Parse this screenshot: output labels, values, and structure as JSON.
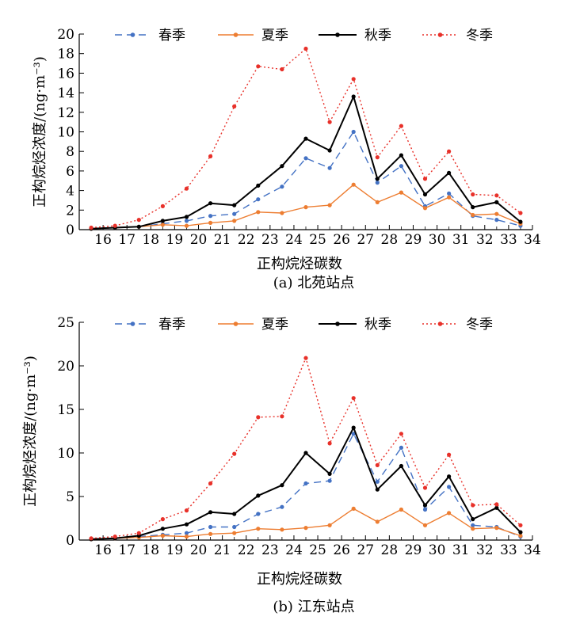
{
  "chart_data": [
    {
      "type": "line",
      "caption": "(a) 北苑站点",
      "xlabel": "正构烷烃碳数",
      "ylabel": "正构烷烃浓度/(ng·m⁻³)",
      "x_ticks": [
        16,
        17,
        18,
        19,
        20,
        21,
        22,
        23,
        24,
        25,
        26,
        27,
        28,
        29,
        30,
        31,
        32,
        33,
        34
      ],
      "y_ticks": [
        0,
        2,
        4,
        6,
        8,
        10,
        12,
        14,
        16,
        18,
        20
      ],
      "xlim": [
        15,
        34
      ],
      "ylim": [
        0,
        20
      ],
      "legend_position": "top",
      "x": [
        15.5,
        16.5,
        17.5,
        18.5,
        19.5,
        20.5,
        21.5,
        22.5,
        23.5,
        24.5,
        25.5,
        26.5,
        27.5,
        28.5,
        29.5,
        30.5,
        31.5,
        32.5,
        33.5
      ],
      "series": [
        {
          "name": "春季",
          "color": "#4472c4",
          "style": "dashed",
          "values": [
            0.1,
            0.2,
            0.3,
            0.6,
            0.9,
            1.4,
            1.6,
            3.1,
            4.4,
            7.3,
            6.3,
            10.0,
            4.8,
            6.5,
            2.4,
            3.7,
            1.4,
            1.0,
            0.4
          ]
        },
        {
          "name": "夏季",
          "color": "#ed7d31",
          "style": "solid",
          "values": [
            0.1,
            0.2,
            0.3,
            0.5,
            0.4,
            0.7,
            0.9,
            1.8,
            1.7,
            2.3,
            2.5,
            4.6,
            2.8,
            3.8,
            2.2,
            3.3,
            1.5,
            1.6,
            0.6
          ]
        },
        {
          "name": "秋季",
          "color": "#000000",
          "style": "solid",
          "values": [
            0.1,
            0.2,
            0.3,
            0.9,
            1.3,
            2.7,
            2.5,
            4.5,
            6.5,
            9.3,
            8.1,
            13.6,
            5.2,
            7.6,
            3.6,
            5.8,
            2.3,
            2.8,
            0.8
          ]
        },
        {
          "name": "冬季",
          "color": "#e8312a",
          "style": "dotted",
          "values": [
            0.2,
            0.4,
            1.0,
            2.4,
            4.2,
            7.5,
            12.6,
            16.7,
            16.4,
            18.5,
            11.0,
            15.4,
            7.4,
            10.6,
            5.2,
            8.0,
            3.6,
            3.5,
            1.7
          ]
        }
      ]
    },
    {
      "type": "line",
      "caption": "(b) 江东站点",
      "xlabel": "正构烷烃碳数",
      "ylabel": "正构烷烃浓度/(ng·m⁻³)",
      "x_ticks": [
        16,
        17,
        18,
        19,
        20,
        21,
        22,
        23,
        24,
        25,
        26,
        27,
        28,
        29,
        30,
        31,
        32,
        33,
        34
      ],
      "y_ticks": [
        0,
        5,
        10,
        15,
        20,
        25
      ],
      "xlim": [
        15,
        34
      ],
      "ylim": [
        0,
        25
      ],
      "legend_position": "top",
      "x": [
        15.5,
        16.5,
        17.5,
        18.5,
        19.5,
        20.5,
        21.5,
        22.5,
        23.5,
        24.5,
        25.5,
        26.5,
        27.5,
        28.5,
        29.5,
        30.5,
        31.5,
        32.5,
        33.5
      ],
      "series": [
        {
          "name": "春季",
          "color": "#4472c4",
          "style": "dashed",
          "values": [
            0.1,
            0.2,
            0.4,
            0.6,
            0.8,
            1.5,
            1.5,
            3.0,
            3.8,
            6.5,
            6.8,
            12.2,
            6.7,
            10.6,
            3.5,
            6.1,
            1.7,
            1.5,
            0.4
          ]
        },
        {
          "name": "夏季",
          "color": "#ed7d31",
          "style": "solid",
          "values": [
            0.1,
            0.2,
            0.3,
            0.5,
            0.4,
            0.7,
            0.8,
            1.3,
            1.2,
            1.4,
            1.7,
            3.6,
            2.1,
            3.5,
            1.7,
            3.1,
            1.3,
            1.4,
            0.5
          ]
        },
        {
          "name": "秋季",
          "color": "#000000",
          "style": "solid",
          "values": [
            0.1,
            0.2,
            0.5,
            1.3,
            1.8,
            3.2,
            3.0,
            5.1,
            6.3,
            10.0,
            7.6,
            12.9,
            5.8,
            8.5,
            4.0,
            7.3,
            2.4,
            3.7,
            0.9
          ]
        },
        {
          "name": "冬季",
          "color": "#e8312a",
          "style": "dotted",
          "values": [
            0.2,
            0.4,
            0.8,
            2.4,
            3.4,
            6.5,
            9.9,
            14.1,
            14.2,
            20.9,
            11.1,
            16.3,
            8.6,
            12.2,
            6.0,
            9.8,
            4.0,
            4.1,
            1.7
          ]
        }
      ]
    }
  ]
}
